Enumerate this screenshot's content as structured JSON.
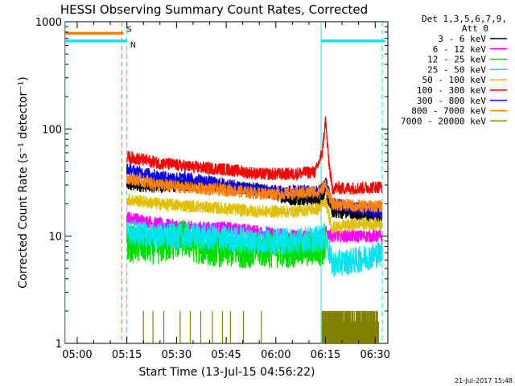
{
  "chart_data": {
    "type": "line",
    "title": "HESSI Observing Summary Count Rates, Corrected",
    "xlabel": "Start Time (13-Jul-15 04:56:22)",
    "ylabel": "Corrected Count Rate (s⁻¹ detector⁻¹)",
    "y_scale": "log",
    "ylim": [
      1,
      1000
    ],
    "xlim": [
      "04:56:22",
      "06:33:50"
    ],
    "x_ticks": [
      "05:00",
      "05:15",
      "05:30",
      "05:45",
      "06:00",
      "06:15",
      "06:30"
    ],
    "y_ticks": [
      "1",
      "10",
      "100",
      "1000"
    ],
    "legend_header": [
      "Det 1,3,5,6,7,9,",
      "Att 0"
    ],
    "legend_position": "right",
    "flags": [
      {
        "label": "S",
        "color": "#ff7f00",
        "segments": [
          [
            "04:56:22",
            "05:14:00"
          ]
        ],
        "value": 780
      },
      {
        "label": "N",
        "color": "#00e5ee",
        "segments": [
          [
            "04:56:22",
            "05:15:00"
          ],
          [
            "06:13:40",
            "06:33:00"
          ]
        ],
        "value": 660
      }
    ],
    "vlines": [
      {
        "x": "04:56:22",
        "color": "#00e5ee",
        "style": "solid"
      },
      {
        "x": "05:13:30",
        "color": "#ff7f00",
        "style": "dashed"
      },
      {
        "x": "05:15:00",
        "color": "#00e5ee",
        "style": "dashed"
      },
      {
        "x": "06:13:40",
        "color": "#00e5ee",
        "style": "solid"
      },
      {
        "x": "06:32:10",
        "color": "#00e5ee",
        "style": "dashed"
      }
    ],
    "series": [
      {
        "name": "3 - 6 keV",
        "color": "#000000",
        "x": [
          "05:15",
          "05:25",
          "05:35",
          "05:45",
          "05:55",
          "06:05",
          "06:13",
          "06:15",
          "06:17",
          "06:25",
          "06:32"
        ],
        "values": [
          30,
          29,
          30,
          29,
          27,
          22,
          22,
          26,
          17,
          16,
          15
        ]
      },
      {
        "name": "6 - 12 keV",
        "color": "#ff00ff",
        "x": [
          "05:15",
          "05:25",
          "05:35",
          "05:45",
          "05:55",
          "06:05",
          "06:13",
          "06:15",
          "06:17",
          "06:25",
          "06:32"
        ],
        "values": [
          15,
          13,
          12,
          12,
          11,
          10,
          10,
          11,
          10,
          10,
          10
        ]
      },
      {
        "name": "12 - 25 keV",
        "color": "#00dd00",
        "x": [
          "05:15",
          "05:25",
          "05:32",
          "05:37",
          "05:45",
          "05:55",
          "06:05",
          "06:13",
          "06:15"
        ],
        "values": [
          8.5,
          8.0,
          9.5,
          8.0,
          7.5,
          7.5,
          7.5,
          7.8,
          8.0
        ]
      },
      {
        "name": "25 - 50 keV",
        "color": "#00e5ee",
        "x": [
          "05:15",
          "05:25",
          "05:35",
          "05:45",
          "05:55",
          "06:05",
          "06:13",
          "06:15",
          "06:17",
          "06:25",
          "06:32"
        ],
        "values": [
          11,
          10,
          10,
          9.5,
          9.0,
          9.0,
          9.5,
          10,
          5.5,
          6.0,
          7.0
        ]
      },
      {
        "name": "50 - 100 keV",
        "color": "#e0c000",
        "x": [
          "05:15",
          "05:25",
          "05:35",
          "05:45",
          "05:55",
          "06:05",
          "06:13",
          "06:15",
          "06:17",
          "06:25",
          "06:32"
        ],
        "values": [
          22,
          20,
          19,
          18,
          17,
          17,
          18,
          21,
          12,
          13,
          13
        ]
      },
      {
        "name": "100 - 300 keV",
        "color": "#ff0000",
        "x": [
          "05:15",
          "05:25",
          "05:35",
          "05:45",
          "05:55",
          "06:05",
          "06:12",
          "06:14",
          "06:15",
          "06:16",
          "06:17",
          "06:25",
          "06:32"
        ],
        "values": [
          55,
          48,
          44,
          42,
          38,
          38,
          40,
          60,
          120,
          50,
          28,
          28,
          29
        ]
      },
      {
        "name": "300 - 800 keV",
        "color": "#0000ff",
        "x": [
          "05:15",
          "05:25",
          "05:35",
          "05:45",
          "05:55",
          "06:05",
          "06:13",
          "06:15",
          "06:17",
          "06:25",
          "06:32"
        ],
        "values": [
          42,
          36,
          34,
          30,
          27,
          26,
          26,
          32,
          20,
          18,
          17
        ]
      },
      {
        "name": "800 - 7000 keV",
        "color": "#ff7f00",
        "x": [
          "05:15",
          "05:25",
          "05:35",
          "05:45",
          "05:55",
          "06:05",
          "06:13",
          "06:15",
          "06:17",
          "06:25",
          "06:32"
        ],
        "values": [
          35,
          30,
          28,
          27,
          25,
          25,
          26,
          30,
          20,
          19,
          19
        ]
      },
      {
        "name": "7000 - 20000 keV",
        "color": "#808000",
        "x": [
          "06:14",
          "06:22",
          "06:31"
        ],
        "values": [
          2,
          2,
          2
        ]
      }
    ],
    "footer_date": "21-Jul-2017 15:48"
  }
}
